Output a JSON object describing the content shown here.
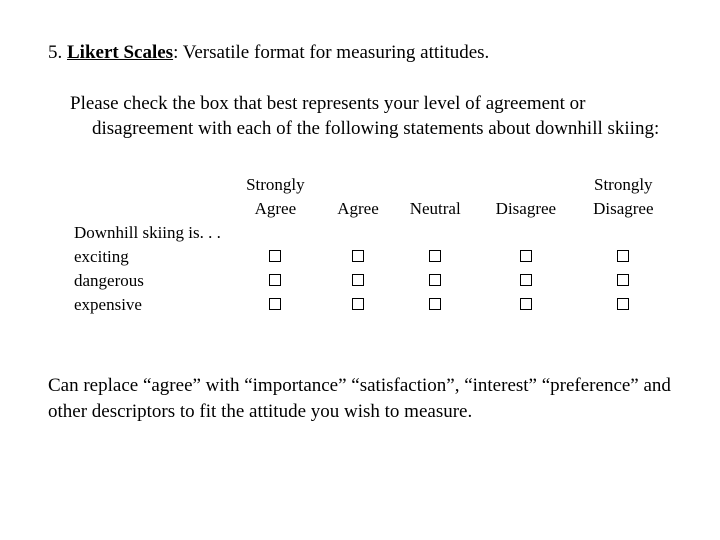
{
  "title_prefix": "5. ",
  "title_main": "Likert Scales",
  "title_suffix": ":  Versatile format for measuring attitudes.",
  "instructions": "Please check the box that best represents your level of agreement or disagreement with each of the following statements about downhill skiing:",
  "scale": {
    "headers": {
      "h1a": "Strongly",
      "h1b": "Agree",
      "h2": "Agree",
      "h3": "Neutral",
      "h4": "Disagree",
      "h5a": "Strongly",
      "h5b": "Disagree"
    },
    "prompt": "Downhill skiing is. . .",
    "rows": [
      "exciting",
      "dangerous",
      "expensive"
    ]
  },
  "footnote": "Can replace “agree” with “importance” “satisfaction”, “interest”  “preference” and other descriptors to fit the attitude you wish to measure."
}
